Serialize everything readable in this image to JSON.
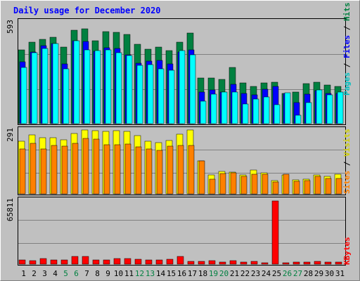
{
  "chart_data": {
    "type": "bar",
    "title": "Daily usage for December 2020",
    "categories": [
      "1",
      "2",
      "3",
      "4",
      "5",
      "6",
      "7",
      "8",
      "9",
      "10",
      "11",
      "12",
      "13",
      "14",
      "15",
      "16",
      "17",
      "18",
      "19",
      "20",
      "21",
      "22",
      "23",
      "24",
      "25",
      "26",
      "27",
      "28",
      "29",
      "30",
      "31"
    ],
    "weekend_days": [
      "5",
      "6",
      "12",
      "13",
      "19",
      "20",
      "26",
      "27"
    ],
    "panels": [
      {
        "name": "hits-files-pages",
        "ymax": 593,
        "ymax_label": "593",
        "side_label": [
          "Pages",
          "/",
          "Files",
          "/",
          "Hits"
        ],
        "series": [
          {
            "name": "Hits",
            "color": "#008040",
            "values": [
              422,
              465,
              482,
              492,
              437,
              534,
              540,
              474,
              526,
              522,
              507,
              452,
              426,
              435,
              416,
              464,
              516,
              262,
              262,
              251,
              322,
              232,
              213,
              232,
              235,
              174,
              179,
              228,
              238,
              220,
              214
            ]
          },
          {
            "name": "Files",
            "color": "#0000ff",
            "values": [
              351,
              409,
              445,
              458,
              342,
              471,
              470,
              413,
              432,
              428,
              393,
              345,
              356,
              359,
              341,
              410,
              422,
              180,
              194,
              179,
              225,
              174,
              163,
              195,
              212,
              174,
              120,
              168,
              189,
              174,
              174
            ]
          },
          {
            "name": "Pages",
            "color": "#00ffff",
            "values": [
              321,
              405,
              428,
              457,
              311,
              474,
              422,
              418,
              419,
              403,
              389,
              331,
              336,
              311,
              306,
              416,
              392,
              129,
              168,
              180,
              181,
              111,
              141,
              154,
              108,
              176,
              49,
              122,
              192,
              166,
              182
            ]
          }
        ]
      },
      {
        "name": "visits-sites",
        "ymax": 291,
        "ymax_label": "291",
        "side_label": [
          "Sites",
          "/",
          "Visits"
        ],
        "series": [
          {
            "name": "Visits",
            "color": "#ffff00",
            "values": [
              232,
              260,
              247,
              247,
              239,
              265,
              283,
              278,
              276,
              280,
              277,
              256,
              232,
              226,
              235,
              264,
              282,
              147,
              85,
              100,
              97,
              84,
              104,
              94,
              60,
              84,
              63,
              65,
              84,
              77,
              86
            ]
          },
          {
            "name": "Sites",
            "color": "#ff8000",
            "values": [
              197,
              223,
              199,
              214,
              209,
              222,
              244,
              240,
              218,
              217,
              219,
              208,
              197,
              191,
              209,
              214,
              213,
              145,
              64,
              90,
              93,
              78,
              86,
              86,
              52,
              87,
              57,
              59,
              78,
              69,
              69
            ]
          }
        ]
      },
      {
        "name": "kbytes",
        "ymax": 65811,
        "ymax_label": "65811",
        "side_label": [
          "KBytes"
        ],
        "series": [
          {
            "name": "KBytes",
            "color": "#ff0000",
            "values": [
              3900,
              3800,
              5900,
              4000,
              4000,
              7700,
              7700,
              4000,
              4200,
              5900,
              5500,
              4600,
              4200,
              4200,
              5100,
              7900,
              2700,
              3000,
              3300,
              1800,
              3200,
              1800,
              2500,
              1400,
              63200,
              1600,
              1900,
              1800,
              2600,
              2000,
              2300
            ]
          }
        ]
      }
    ]
  }
}
